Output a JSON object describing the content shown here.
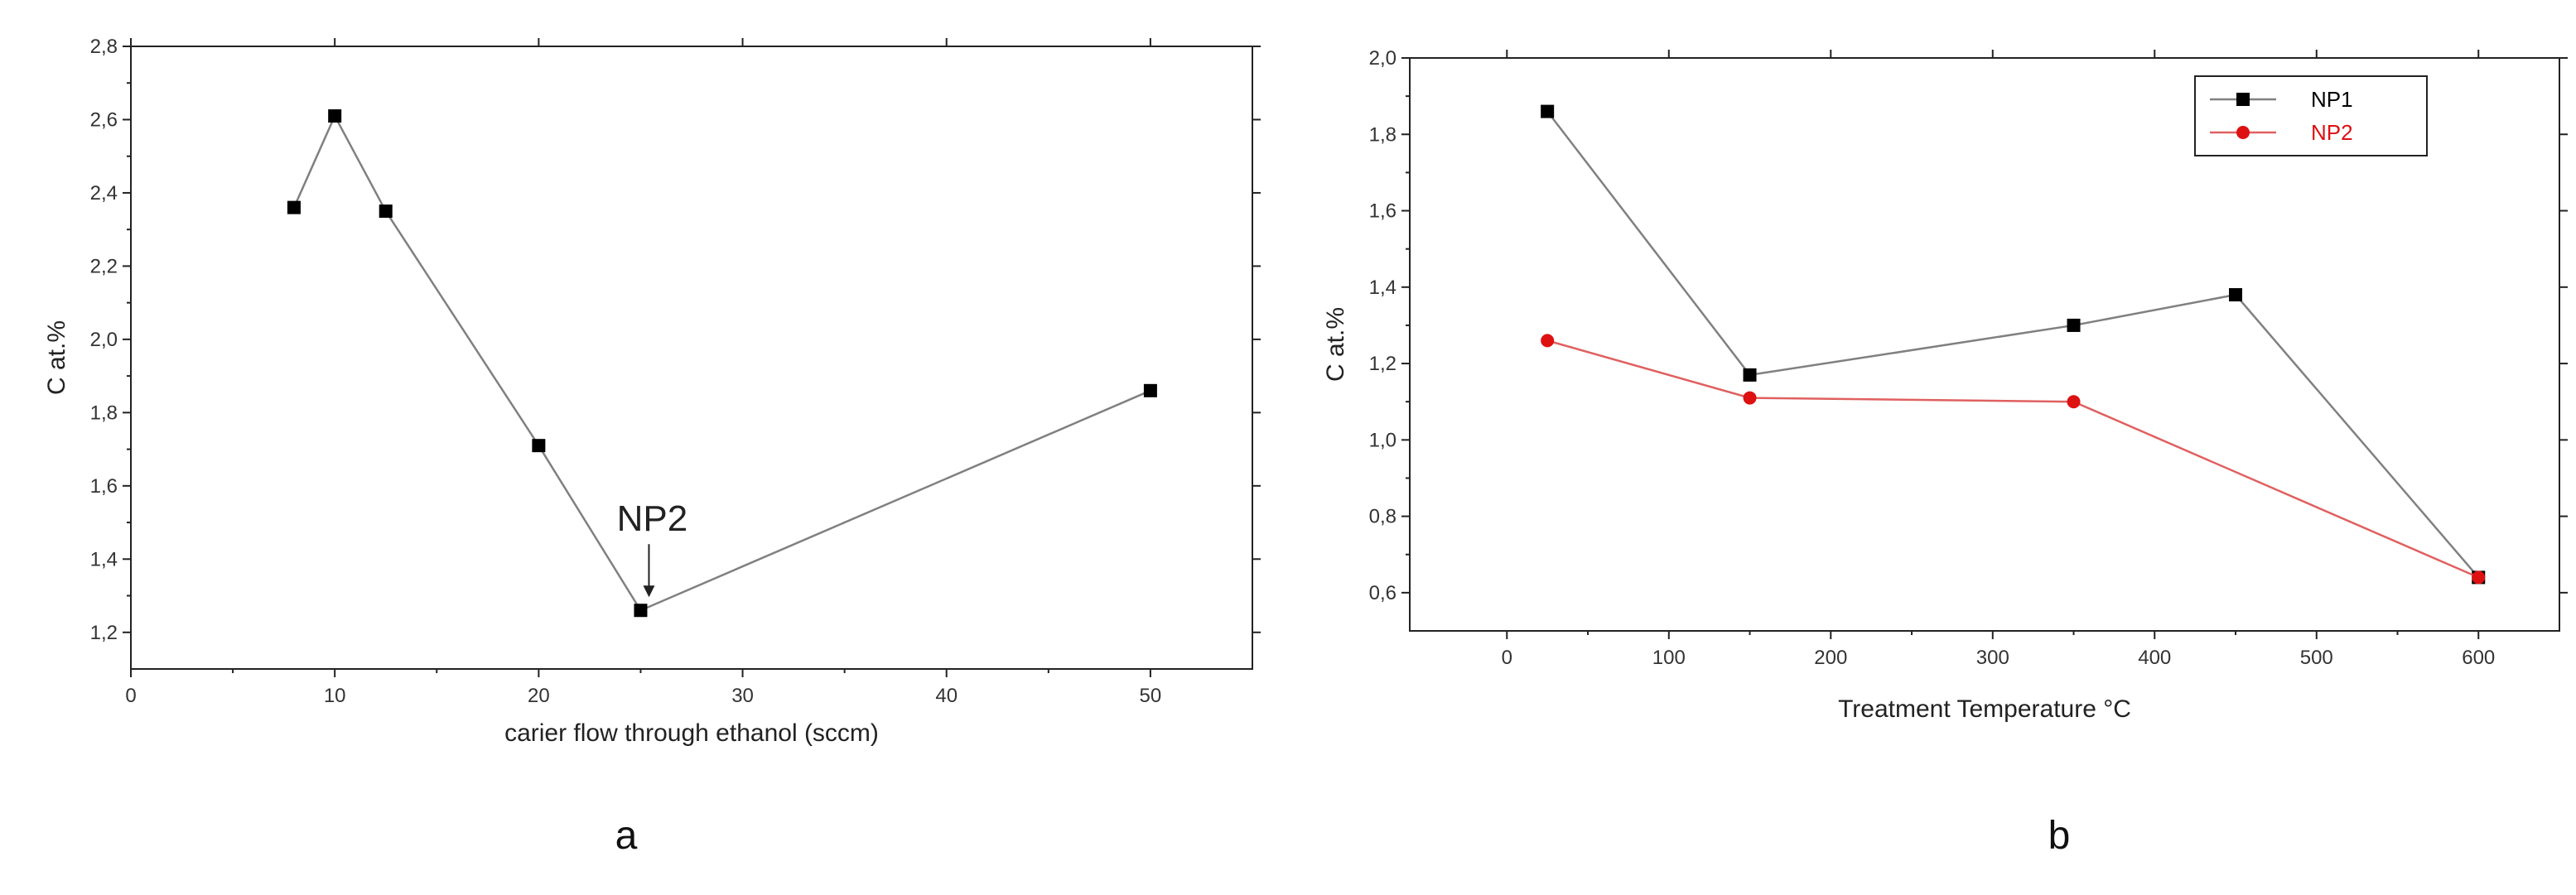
{
  "chart_data": [
    {
      "type": "line",
      "panel_label": "a",
      "xlabel": "carier flow through ethanol (sccm)",
      "ylabel": "C at.%",
      "xlim": [
        0,
        55
      ],
      "ylim": [
        1.1,
        2.8
      ],
      "x_ticks": [
        0,
        10,
        20,
        30,
        40,
        50
      ],
      "x_tick_labels": [
        "0",
        "10",
        "20",
        "30",
        "40",
        "50"
      ],
      "y_ticks": [
        1.2,
        1.4,
        1.6,
        1.8,
        2.0,
        2.2,
        2.4,
        2.6,
        2.8
      ],
      "y_tick_labels": [
        "1,2",
        "1,4",
        "1,6",
        "1,8",
        "2,0",
        "2,2",
        "2,4",
        "2,6",
        "2,8"
      ],
      "grid": false,
      "series": [
        {
          "marker": "square",
          "color": "#808080",
          "marker_color": "#000000",
          "x": [
            8,
            10,
            12.5,
            20,
            25,
            50
          ],
          "y": [
            2.36,
            2.61,
            2.35,
            1.71,
            1.26,
            1.86
          ]
        }
      ],
      "annotations": [
        {
          "text": "NP2",
          "x": 25,
          "y": 1.26,
          "arrow": true
        }
      ]
    },
    {
      "type": "line",
      "panel_label": "b",
      "xlabel": "Treatment Temperature °C",
      "ylabel": "C at.%",
      "xlim": [
        -60,
        650
      ],
      "ylim": [
        0.5,
        2.0
      ],
      "x_ticks": [
        0,
        100,
        200,
        300,
        400,
        500,
        600
      ],
      "x_tick_labels": [
        "0",
        "100",
        "200",
        "300",
        "400",
        "500",
        "600"
      ],
      "y_ticks": [
        0.6,
        0.8,
        1.0,
        1.2,
        1.4,
        1.6,
        1.8,
        2.0
      ],
      "y_tick_labels": [
        "0,6",
        "0,8",
        "1,0",
        "1,2",
        "1,4",
        "1,6",
        "1,8",
        "2,0"
      ],
      "grid": false,
      "legend_position": "top-right",
      "series": [
        {
          "name": "NP1",
          "marker": "square",
          "color": "#808080",
          "marker_color": "#000000",
          "label_color": "#000000",
          "x": [
            25,
            150,
            350,
            450,
            600
          ],
          "y": [
            1.86,
            1.17,
            1.3,
            1.38,
            0.64
          ]
        },
        {
          "name": "NP2",
          "marker": "circle",
          "color": "#e06060",
          "marker_color": "#dd1111",
          "label_color": "#dd1111",
          "x": [
            25,
            150,
            350,
            600
          ],
          "y": [
            1.26,
            1.11,
            1.1,
            0.64
          ]
        }
      ]
    }
  ]
}
